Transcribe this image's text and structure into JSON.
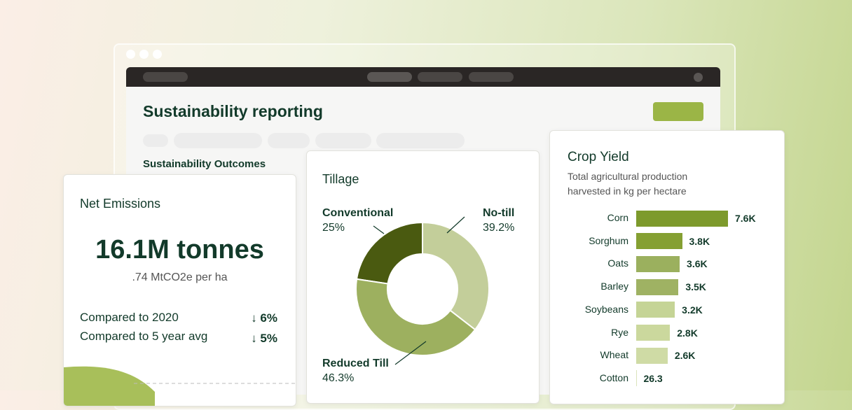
{
  "window": {
    "title": "Sustainability reporting",
    "section": "Sustainability Outcomes"
  },
  "net_emissions": {
    "title": "Net Emissions",
    "value": "16.1M tonnes",
    "subtitle": ".74 MtCO2e per ha",
    "comparisons": [
      {
        "label": "Compared to 2020",
        "change": "6%"
      },
      {
        "label": "Compared to 5 year avg",
        "change": "5%"
      }
    ]
  },
  "tillage": {
    "type": "pie",
    "title": "Tillage",
    "categories": [
      "No-till",
      "Reduced Till",
      "Conventional"
    ],
    "values": [
      39.2,
      46.3,
      25
    ],
    "value_labels": [
      "39.2%",
      "46.3%",
      "25%"
    ],
    "colors": [
      "#c3ce9a",
      "#9db05f",
      "#4a5a10"
    ]
  },
  "crop_yield": {
    "type": "bar",
    "title": "Crop Yield",
    "subtitle": "Total agricultural production harvested in kg per hectare",
    "categories": [
      "Corn",
      "Sorghum",
      "Oats",
      "Barley",
      "Soybeans",
      "Rye",
      "Wheat",
      "Cotton"
    ],
    "values": [
      7600,
      3800,
      3600,
      3500,
      3200,
      2800,
      2600,
      26.3
    ],
    "value_labels": [
      "7.6K",
      "3.8K",
      "3.6K",
      "3.5K",
      "3.2K",
      "2.8K",
      "2.6K",
      "26.3"
    ],
    "colors": [
      "#7d9a2c",
      "#85a032",
      "#9bb05e",
      "#9fb263",
      "#c5d496",
      "#cbd89d",
      "#cfdba5",
      "#dbe4bc"
    ]
  }
}
